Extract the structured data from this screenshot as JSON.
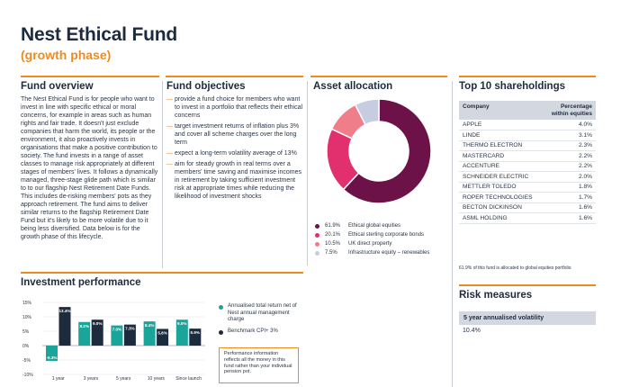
{
  "header": {
    "title": "Nest Ethical Fund",
    "subtitle": "(growth phase)"
  },
  "colors": {
    "navy": "#1d2b3f",
    "orange": "#ef8a1f",
    "teal": "#1aa59b",
    "maroon": "#6c1248",
    "pink": "#e22f6d",
    "salmon": "#f07d8a",
    "lightblue": "#c7cde0"
  },
  "overview": {
    "title": "Fund overview",
    "text": "The Nest Ethical Fund is for people who want to invest in line with specific ethical or moral concerns, for example in areas such as human rights and fair trade. It doesn't just exclude companies that harm the world, its people or the environment, it also proactively invests in organisations that make a positive contribution to society. The fund invests in a range of asset classes to manage risk appropriately at different stages of members' lives. It follows a dynamically managed, three-stage glide path which is similar to to our flagship Nest Retirement Date Funds. This includes de-risking members' pots as they approach retirement. The fund aims to deliver similar returns to the flagship Retirement Date Fund but it's likely to be more volatile due to it being less diversified. Data below is for the growth phase of this lifecycle."
  },
  "objectives": {
    "title": "Fund objectives",
    "items": [
      "provide a fund choice for members who want to invest in a portfolio that reflects their ethical concerns",
      "target investment returns of inflation plus 3% and cover all scheme charges over the long term",
      "expect a long-term volatility average of 13%",
      "aim for steady growth in real terms over a members' time saving and maximise incomes in retirement by taking sufficient investment risk at appropriate times while reducing the likelihood of investment shocks"
    ]
  },
  "allocation": {
    "title": "Asset allocation",
    "items": [
      {
        "pct": "61.9%",
        "label": "Ethical global equities",
        "value": 61.9,
        "color": "#6c1248"
      },
      {
        "pct": "20.1%",
        "label": "Ethical sterling corporate bonds",
        "value": 20.1,
        "color": "#e22f6d"
      },
      {
        "pct": "10.5%",
        "label": "UK direct property",
        "value": 10.5,
        "color": "#f07d8a"
      },
      {
        "pct": "7.5%",
        "label": "Infrastructure equity – renewables",
        "value": 7.5,
        "color": "#c7cde0"
      }
    ]
  },
  "holdings": {
    "title": "Top 10 shareholdings",
    "col_company": "Company",
    "col_pct_line1": "Percentage",
    "col_pct_line2": "within equities",
    "rows": [
      {
        "company": "APPLE",
        "pct": "4.0%"
      },
      {
        "company": "LINDE",
        "pct": "3.1%"
      },
      {
        "company": "THERMO ELECTRON",
        "pct": "2.3%"
      },
      {
        "company": "MASTERCARD",
        "pct": "2.2%"
      },
      {
        "company": "ACCENTURE",
        "pct": "2.2%"
      },
      {
        "company": "SCHNEIDER ELECTRIC",
        "pct": "2.0%"
      },
      {
        "company": "METTLER TOLEDO",
        "pct": "1.8%"
      },
      {
        "company": "ROPER TECHNOLOGIES",
        "pct": "1.7%"
      },
      {
        "company": "BECTON DICKINSON",
        "pct": "1.6%"
      },
      {
        "company": "ASML HOLDING",
        "pct": "1.6%"
      }
    ],
    "footnote": "61.9% of this fund is allocated to global equities portfolio"
  },
  "performance": {
    "title": "Investment performance",
    "legend_fund": "Annualised total return net of Nest annual management charge",
    "legend_benchmark": "Benchmark CPI+ 3%",
    "note": "Performance information reflects all the money in this fund rather than your individual pension pot."
  },
  "risk": {
    "title": "Risk measures",
    "label": "5 year annualised volatility",
    "value": "10.4%"
  },
  "chart_data": {
    "type": "bar",
    "categories": [
      "1 year",
      "3 years",
      "5 years",
      "10 years",
      "Since launch"
    ],
    "series": [
      {
        "name": "Annualised total return net of Nest annual management charge",
        "values": [
          -5.3,
          8.2,
          7.0,
          8.4,
          9.0
        ],
        "labels": [
          "-5.3%",
          "8.2%",
          "7.0%",
          "8.4%",
          "9.0%"
        ],
        "color": "#1aa59b"
      },
      {
        "name": "Benchmark CPI+ 3%",
        "values": [
          13.4,
          9.0,
          7.3,
          5.8,
          5.9
        ],
        "labels": [
          "13.4%",
          "9.0%",
          "7.3%",
          "5.8%",
          "5.9%"
        ],
        "color": "#1d2b3f"
      }
    ],
    "yticks": [
      "15%",
      "10%",
      "5%",
      "0%",
      "-5%",
      "-10%"
    ],
    "ytick_values": [
      15,
      10,
      5,
      0,
      -5,
      -10
    ],
    "ylim": [
      -10,
      15
    ],
    "grid": true
  }
}
